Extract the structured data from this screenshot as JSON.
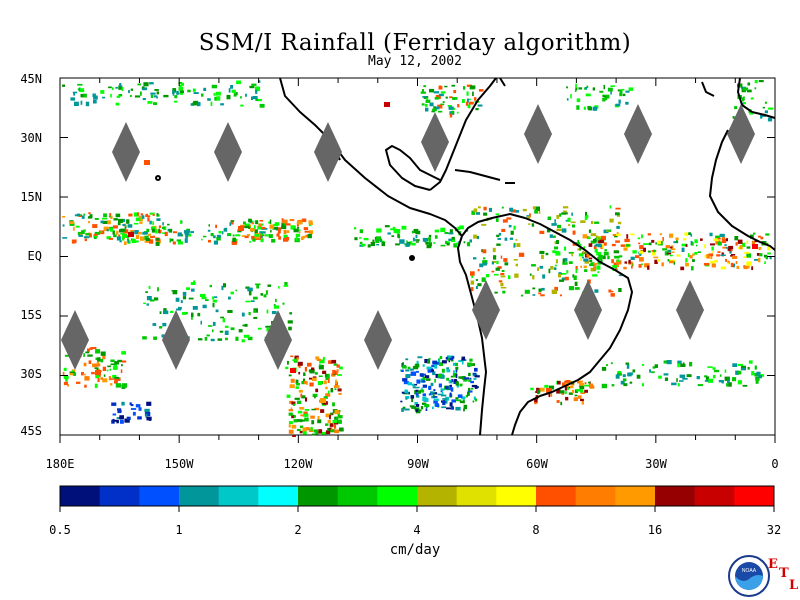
{
  "title": "SSM/I Rainfall (Ferriday algorithm)",
  "subtitle": "May 12, 2002",
  "lat_labels": [
    "45N",
    "30N",
    "15N",
    "EQ",
    "15S",
    "30S",
    "45S"
  ],
  "lon_labels": [
    "180E",
    "150W",
    "120W",
    "90W",
    "60W",
    "30W",
    "0"
  ],
  "colorbar": {
    "units": "cm/day",
    "tick_labels": [
      "0.5",
      "1",
      "2",
      "4",
      "8",
      "16",
      "32"
    ],
    "colors": [
      "#00107a",
      "#0030c8",
      "#0050ff",
      "#00969a",
      "#00c8c8",
      "#00ffff",
      "#009600",
      "#00c800",
      "#00ff00",
      "#b4b400",
      "#e1e100",
      "#ffff00",
      "#ff5000",
      "#ff7d00",
      "#ff9b00",
      "#960000",
      "#c80000",
      "#ff0000"
    ]
  },
  "logo": {
    "noaa": "NOAA",
    "etl": [
      "E",
      "T",
      "L"
    ]
  },
  "colors": {
    "land": "#000000",
    "data_gap": "#666666",
    "background": "#ffffff"
  }
}
